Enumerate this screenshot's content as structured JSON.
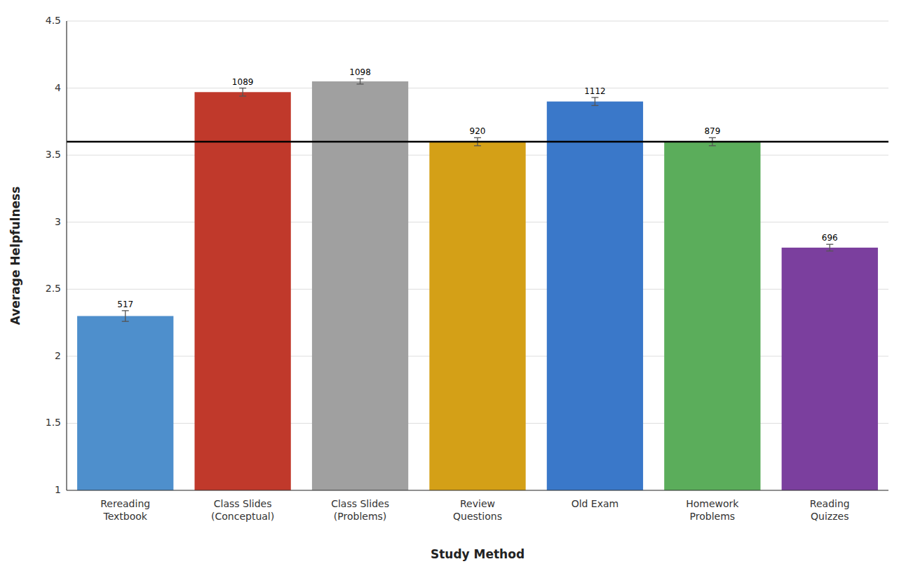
{
  "chart_data": {
    "type": "bar",
    "categories": [
      "Rereading\nTextbook",
      "Class Slides\n(Conceptual)",
      "Class Slides\n(Problems)",
      "Review\nQuestions",
      "Old Exam",
      "Homework\nProblems",
      "Reading\nQuizzes"
    ],
    "values": [
      2.3,
      3.97,
      4.05,
      3.6,
      3.9,
      3.6,
      2.81
    ],
    "errors": [
      0.04,
      0.03,
      0.02,
      0.03,
      0.03,
      0.03,
      0.025
    ],
    "ns": [
      517,
      1089,
      1098,
      920,
      1112,
      879,
      696
    ],
    "colors": [
      "#4E8FCC",
      "#C0392B",
      "#A0A0A0",
      "#D4A017",
      "#3A78C9",
      "#5BAD5B",
      "#7B3F9E"
    ],
    "reference_line": 3.6,
    "xlabel": "Study Method",
    "ylabel": "Average Helpfulness",
    "ylim": [
      1.0,
      4.5
    ],
    "yticks": [
      1,
      1.5,
      2,
      2.5,
      3,
      3.5,
      4,
      4.5
    ],
    "grid": true
  }
}
